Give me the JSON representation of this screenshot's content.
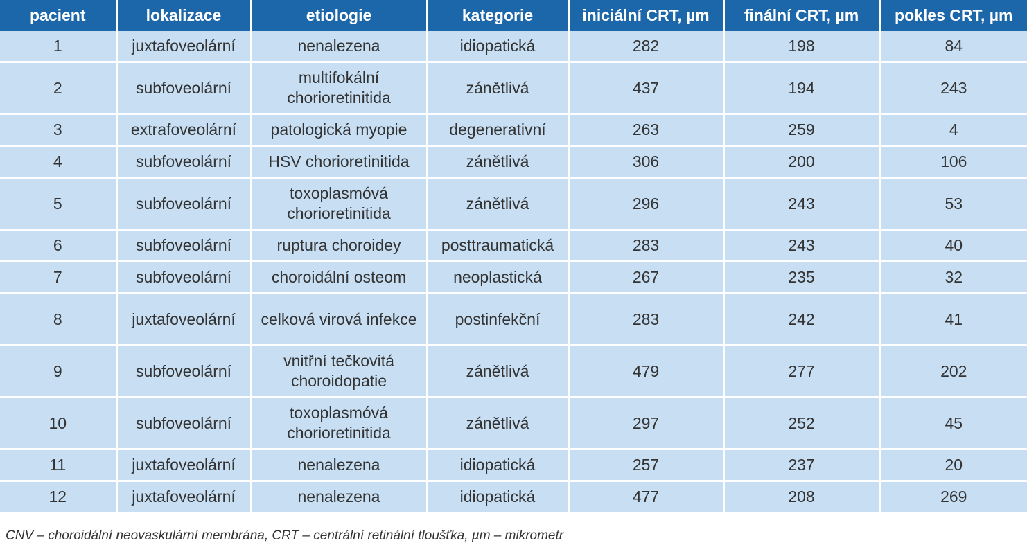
{
  "table": {
    "headers": [
      "pacient",
      "lokalizace",
      "etiologie",
      "kategorie",
      "iniciální CRT, µm",
      "finální CRT, µm",
      "pokles CRT, µm"
    ],
    "rows": [
      {
        "pacient": "1",
        "lokalizace": "juxtafoveolární",
        "etiologie": "nenalezena",
        "kategorie": "idiopatická",
        "inicialni": "282",
        "finalni": "198",
        "pokles": "84"
      },
      {
        "pacient": "2",
        "lokalizace": "subfoveolární",
        "etiologie": "multifokální chorioretinitida",
        "kategorie": "zánětlivá",
        "inicialni": "437",
        "finalni": "194",
        "pokles": "243"
      },
      {
        "pacient": "3",
        "lokalizace": "extrafoveolární",
        "etiologie": "patologická myopie",
        "kategorie": "degenerativní",
        "inicialni": "263",
        "finalni": "259",
        "pokles": "4"
      },
      {
        "pacient": "4",
        "lokalizace": "subfoveolární",
        "etiologie": "HSV chorioretinitida",
        "kategorie": "zánětlivá",
        "inicialni": "306",
        "finalni": "200",
        "pokles": "106"
      },
      {
        "pacient": "5",
        "lokalizace": "subfoveolární",
        "etiologie": "toxoplasmóvá chorioretinitida",
        "kategorie": "zánětlivá",
        "inicialni": "296",
        "finalni": "243",
        "pokles": "53"
      },
      {
        "pacient": "6",
        "lokalizace": "subfoveolární",
        "etiologie": "ruptura choroidey",
        "kategorie": "posttraumatická",
        "inicialni": "283",
        "finalni": "243",
        "pokles": "40"
      },
      {
        "pacient": "7",
        "lokalizace": "subfoveolární",
        "etiologie": "choroidální osteom",
        "kategorie": "neoplastická",
        "inicialni": "267",
        "finalni": "235",
        "pokles": "32"
      },
      {
        "pacient": "8",
        "lokalizace": "juxtafoveolární",
        "etiologie": "celková virová infekce",
        "kategorie": "postinfekční",
        "inicialni": "283",
        "finalni": "242",
        "pokles": "41"
      },
      {
        "pacient": "9",
        "lokalizace": "subfoveolární",
        "etiologie": "vnitřní tečkovitá choroidopatie",
        "kategorie": "zánětlivá",
        "inicialni": "479",
        "finalni": "277",
        "pokles": "202"
      },
      {
        "pacient": "10",
        "lokalizace": "subfoveolární",
        "etiologie": "toxoplasmóvá chorioretinitida",
        "kategorie": "zánětlivá",
        "inicialni": "297",
        "finalni": "252",
        "pokles": "45"
      },
      {
        "pacient": "11",
        "lokalizace": "juxtafoveolární",
        "etiologie": "nenalezena",
        "kategorie": "idiopatická",
        "inicialni": "257",
        "finalni": "237",
        "pokles": "20"
      },
      {
        "pacient": "12",
        "lokalizace": "juxtafoveolární",
        "etiologie": "nenalezena",
        "kategorie": "idiopatická",
        "inicialni": "477",
        "finalni": "208",
        "pokles": "269"
      }
    ]
  },
  "footnote": "CNV – choroidální neovaskulární membrána, CRT – centrální retinální tloušťka, µm – mikrometr",
  "colors": {
    "header_bg": "#1b67a9",
    "header_text": "#ffffff",
    "cell_bg": "#c7def3",
    "cell_text": "#333333"
  }
}
